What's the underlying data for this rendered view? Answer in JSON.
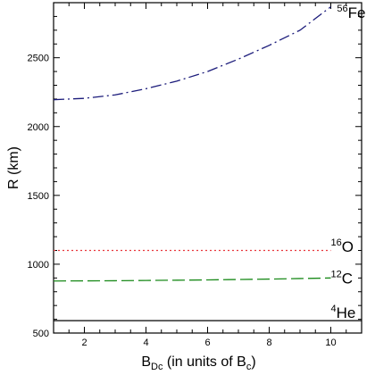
{
  "chart_data": {
    "type": "line",
    "title": "",
    "xlabel": {
      "main": "B",
      "sub": "Dc",
      "rest": " (in units of B",
      "rest_sub": "c",
      "end": ")"
    },
    "ylabel": "R (km)",
    "xlim": [
      1,
      11
    ],
    "ylim": [
      500,
      2900
    ],
    "xticks": [
      2,
      4,
      6,
      8,
      10
    ],
    "yticks": [
      500,
      1000,
      1500,
      2000,
      2500
    ],
    "grid": false,
    "series": [
      {
        "name": "4He",
        "label_sup": "4",
        "label_main": "He",
        "label_x": 10,
        "label_y": 610,
        "color": "#000000",
        "dash": "none",
        "x": [
          1,
          2,
          3,
          4,
          5,
          6,
          7,
          8,
          9,
          10,
          11
        ],
        "y": [
          590,
          590,
          590,
          590,
          590,
          590,
          590,
          590,
          590,
          590,
          590
        ]
      },
      {
        "name": "12C",
        "label_sup": "12",
        "label_main": "C",
        "label_x": 10,
        "label_y": 860,
        "color": "#1a8a1a",
        "dash": "long-dash",
        "x": [
          1,
          2,
          3,
          4,
          5,
          6,
          7,
          8,
          9,
          10
        ],
        "y": [
          878,
          879,
          880,
          882,
          884,
          886,
          889,
          892,
          896,
          900
        ]
      },
      {
        "name": "16O",
        "label_sup": "16",
        "label_main": "O",
        "label_x": 10,
        "label_y": 1090,
        "color": "#e8383d",
        "dash": "dot",
        "x": [
          1,
          2,
          3,
          4,
          5,
          6,
          7,
          8,
          9,
          10
        ],
        "y": [
          1100,
          1100,
          1100,
          1100,
          1100,
          1100,
          1100,
          1100,
          1100,
          1100
        ]
      },
      {
        "name": "56Fe",
        "label_sup": "56",
        "label_main": "Fe",
        "label_x": 10.2,
        "label_y": 2790,
        "color": "#1a1a7a",
        "dash": "dash-dot",
        "x": [
          1,
          2,
          3,
          4,
          5,
          6,
          7,
          8,
          9,
          10
        ],
        "y": [
          2195,
          2205,
          2230,
          2275,
          2330,
          2400,
          2490,
          2590,
          2700,
          2870
        ]
      }
    ]
  }
}
